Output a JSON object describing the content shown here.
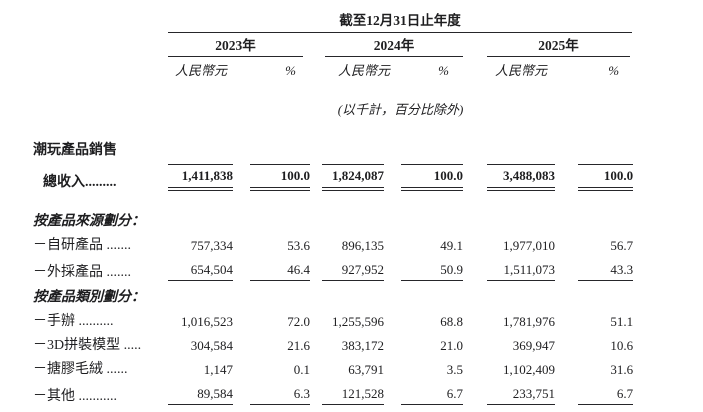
{
  "document": {
    "period_caption": "截至12月31日止年度",
    "years": [
      "2023年",
      "2024年",
      "2025年"
    ],
    "unit_currency": "人民幣元",
    "unit_percent": "%",
    "basis_note": "(以千計，百分比除外)",
    "rows": [
      {
        "type": "group",
        "label": "潮玩產品銷售"
      },
      {
        "type": "total",
        "label": "總收入.........",
        "values": [
          "1,411,838",
          "100.0",
          "1,824,087",
          "100.0",
          "3,488,083",
          "100.0"
        ]
      },
      {
        "type": "section",
        "label": "按產品來源劃分："
      },
      {
        "type": "item",
        "label": "－自研產品 .......",
        "values": [
          "757,334",
          "53.6",
          "896,135",
          "49.1",
          "1,977,010",
          "56.7"
        ]
      },
      {
        "type": "sub",
        "label": "－外採產品 .......",
        "values": [
          "654,504",
          "46.4",
          "927,952",
          "50.9",
          "1,511,073",
          "43.3"
        ]
      },
      {
        "type": "section",
        "label": "按產品類別劃分："
      },
      {
        "type": "item",
        "label": "－手辦 ..........",
        "values": [
          "1,016,523",
          "72.0",
          "1,255,596",
          "68.8",
          "1,781,976",
          "51.1"
        ]
      },
      {
        "type": "item",
        "label": "－3D拼裝模型 .....",
        "values": [
          "304,584",
          "21.6",
          "383,172",
          "21.0",
          "369,947",
          "10.6"
        ]
      },
      {
        "type": "item",
        "label": "－搪膠毛絨 ......",
        "values": [
          "1,147",
          "0.1",
          "63,791",
          "3.5",
          "1,102,409",
          "31.6"
        ]
      },
      {
        "type": "sub",
        "label": "－其他 ...........",
        "values": [
          "89,584",
          "6.3",
          "121,528",
          "6.7",
          "233,751",
          "6.7"
        ]
      }
    ]
  }
}
